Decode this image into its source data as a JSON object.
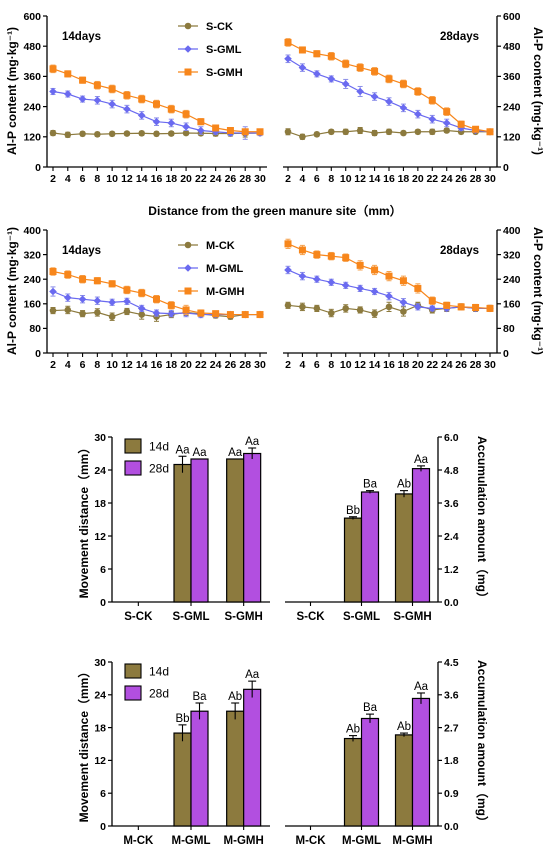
{
  "chart_data": [
    {
      "id": "p1",
      "type": "line",
      "xlabel": "",
      "ylabel": "Al-P content (mg·kg⁻¹)",
      "yticks": [
        0,
        120,
        240,
        360,
        480,
        600
      ],
      "ylim": [
        0,
        600
      ],
      "x": [
        2,
        4,
        6,
        8,
        10,
        12,
        14,
        16,
        18,
        20,
        22,
        24,
        26,
        28,
        30
      ],
      "left": {
        "annotation": "14days",
        "series": [
          {
            "name": "S-CK",
            "values": [
              135,
              128,
              132,
              130,
              132,
              133,
              134,
              132,
              133,
              135,
              134,
              133,
              133,
              134,
              135
            ],
            "err": [
              10,
              10,
              8,
              8,
              8,
              8,
              8,
              8,
              8,
              8,
              8,
              10,
              10,
              15,
              10
            ]
          },
          {
            "name": "S-GML",
            "values": [
              300,
              290,
              270,
              265,
              250,
              230,
              205,
              180,
              175,
              160,
              145,
              140,
              135,
              135,
              135
            ],
            "err": [
              12,
              12,
              12,
              15,
              15,
              15,
              15,
              15,
              15,
              15,
              15,
              10,
              10,
              25,
              10
            ]
          },
          {
            "name": "S-GMH",
            "values": [
              390,
              370,
              345,
              325,
              310,
              285,
              270,
              250,
              230,
              210,
              180,
              155,
              145,
              140,
              140
            ],
            "err": [
              15,
              12,
              12,
              15,
              15,
              15,
              15,
              15,
              15,
              15,
              12,
              10,
              10,
              10,
              10
            ]
          }
        ]
      },
      "right": {
        "annotation": "28days",
        "series": [
          {
            "name": "S-CK",
            "values": [
              140,
              120,
              130,
              140,
              140,
              145,
              135,
              140,
              135,
              140,
              140,
              145,
              140,
              140,
              140
            ],
            "err": [
              12,
              10,
              8,
              8,
              10,
              12,
              10,
              10,
              8,
              8,
              10,
              8,
              8,
              8,
              8
            ]
          },
          {
            "name": "S-GML",
            "values": [
              430,
              395,
              370,
              350,
              330,
              300,
              280,
              260,
              235,
              210,
              190,
              175,
              155,
              145,
              140
            ],
            "err": [
              15,
              15,
              12,
              12,
              18,
              20,
              15,
              15,
              15,
              15,
              15,
              15,
              10,
              8,
              8
            ]
          },
          {
            "name": "S-GMH",
            "values": [
              495,
              465,
              450,
              440,
              410,
              395,
              380,
              350,
              330,
              300,
              265,
              220,
              170,
              150,
              140
            ],
            "err": [
              15,
              12,
              12,
              15,
              15,
              15,
              15,
              15,
              15,
              15,
              15,
              15,
              12,
              10,
              10
            ]
          }
        ]
      }
    },
    {
      "id": "p2",
      "type": "line",
      "xlabel": "Distance from the green manure site（mm）",
      "ylabel": "Al-P content (mg·kg⁻¹)",
      "yticks": [
        0,
        80,
        160,
        240,
        320,
        400
      ],
      "ylim": [
        0,
        400
      ],
      "x": [
        2,
        4,
        6,
        8,
        10,
        12,
        14,
        16,
        18,
        20,
        22,
        24,
        26,
        28,
        30
      ],
      "left": {
        "annotation": "14days",
        "series": [
          {
            "name": "M-CK",
            "values": [
              138,
              140,
              128,
              132,
              118,
              135,
              125,
              118,
              125,
              132,
              127,
              122,
              118,
              125,
              125
            ],
            "err": [
              10,
              12,
              10,
              12,
              12,
              10,
              15,
              15,
              10,
              10,
              8,
              8,
              8,
              8,
              8
            ]
          },
          {
            "name": "M-GML",
            "values": [
              200,
              180,
              175,
              170,
              165,
              168,
              145,
              130,
              128,
              130,
              125,
              125,
              125,
              125,
              125
            ],
            "err": [
              15,
              12,
              12,
              12,
              10,
              10,
              10,
              10,
              10,
              12,
              10,
              8,
              8,
              8,
              8
            ]
          },
          {
            "name": "M-GMH",
            "values": [
              265,
              255,
              240,
              235,
              225,
              205,
              195,
              175,
              155,
              140,
              130,
              128,
              125,
              125,
              125
            ],
            "err": [
              12,
              12,
              12,
              10,
              10,
              12,
              12,
              12,
              12,
              15,
              10,
              8,
              8,
              8,
              8
            ]
          }
        ]
      },
      "right": {
        "annotation": "28days",
        "series": [
          {
            "name": "M-CK",
            "values": [
              155,
              150,
              145,
              130,
              145,
              140,
              128,
              150,
              135,
              155,
              140,
              145,
              150,
              145,
              145
            ],
            "err": [
              10,
              12,
              10,
              12,
              12,
              10,
              12,
              15,
              15,
              10,
              10,
              10,
              10,
              10,
              10
            ]
          },
          {
            "name": "M-GML",
            "values": [
              270,
              250,
              240,
              230,
              220,
              210,
              200,
              185,
              165,
              150,
              145,
              145,
              150,
              145,
              145
            ],
            "err": [
              12,
              12,
              10,
              10,
              10,
              10,
              10,
              12,
              12,
              10,
              8,
              8,
              8,
              8,
              8
            ]
          },
          {
            "name": "M-GMH",
            "values": [
              355,
              335,
              320,
              315,
              310,
              285,
              270,
              250,
              235,
              210,
              170,
              155,
              150,
              148,
              145
            ],
            "err": [
              15,
              15,
              12,
              12,
              12,
              15,
              15,
              15,
              15,
              15,
              12,
              10,
              10,
              10,
              10
            ]
          }
        ]
      }
    },
    {
      "id": "p3",
      "type": "bar",
      "categories": [
        "S-CK",
        "S-GML",
        "S-GMH"
      ],
      "series_names": [
        "14d",
        "28d"
      ],
      "left": {
        "ylabel": "Movement distance（mm）",
        "yticks": [
          0,
          6,
          12,
          18,
          24,
          30
        ],
        "ylim": [
          0,
          30
        ],
        "series": [
          {
            "name": "14d",
            "values": [
              0,
              25,
              26
            ],
            "err": [
              0,
              1.5,
              0
            ],
            "labels": [
              "",
              "Aa",
              "Aa"
            ]
          },
          {
            "name": "28d",
            "values": [
              0,
              26,
              27
            ],
            "err": [
              0,
              0,
              1
            ],
            "labels": [
              "",
              "Aa",
              "Aa"
            ]
          }
        ]
      },
      "right": {
        "ylabel": "Accumulation amount（mg）",
        "yticks": [
          0.0,
          1.2,
          2.4,
          3.6,
          4.8,
          6.0
        ],
        "ylim": [
          0,
          6
        ],
        "series": [
          {
            "name": "14d",
            "values": [
              0,
              3.05,
              3.93
            ],
            "err": [
              0,
              0.05,
              0.12
            ],
            "labels": [
              "",
              "Bb",
              "Ab"
            ]
          },
          {
            "name": "28d",
            "values": [
              0,
              4.0,
              4.85
            ],
            "err": [
              0,
              0.05,
              0.1
            ],
            "labels": [
              "",
              "Ba",
              "Aa"
            ]
          }
        ]
      }
    },
    {
      "id": "p4",
      "type": "bar",
      "categories": [
        "M-CK",
        "M-GML",
        "M-GMH"
      ],
      "series_names": [
        "14d",
        "28d"
      ],
      "left": {
        "ylabel": "Movement distance（mm）",
        "yticks": [
          0,
          6,
          12,
          18,
          24,
          30
        ],
        "ylim": [
          0,
          30
        ],
        "series": [
          {
            "name": "14d",
            "values": [
              0,
              17,
              21
            ],
            "err": [
              0,
              1.5,
              1.5
            ],
            "labels": [
              "",
              "Bb",
              "Ab"
            ]
          },
          {
            "name": "28d",
            "values": [
              0,
              21,
              25
            ],
            "err": [
              0,
              1.5,
              1.5
            ],
            "labels": [
              "",
              "Ba",
              "Aa"
            ]
          }
        ]
      },
      "right": {
        "ylabel": "Accumulation amount（mg）",
        "yticks": [
          0.0,
          0.9,
          1.8,
          2.7,
          3.6,
          4.5
        ],
        "ylim": [
          0,
          4.5
        ],
        "series": [
          {
            "name": "14d",
            "values": [
              0,
              2.4,
              2.5
            ],
            "err": [
              0,
              0.08,
              0.05
            ],
            "labels": [
              "",
              "Ab",
              "Ab"
            ]
          },
          {
            "name": "28d",
            "values": [
              0,
              2.95,
              3.5
            ],
            "err": [
              0,
              0.12,
              0.15
            ],
            "labels": [
              "",
              "Ba",
              "Aa"
            ]
          }
        ]
      }
    }
  ],
  "colors": {
    "CK": "#8c7a3e",
    "GML": "#6a6af0",
    "GMH": "#f7861b",
    "bar14": "#8c7a3e",
    "bar28": "#b24fe0",
    "errCK": "#8c7a3e",
    "errGML": "#8b8ee8",
    "errGMH": "#f5a14d"
  }
}
